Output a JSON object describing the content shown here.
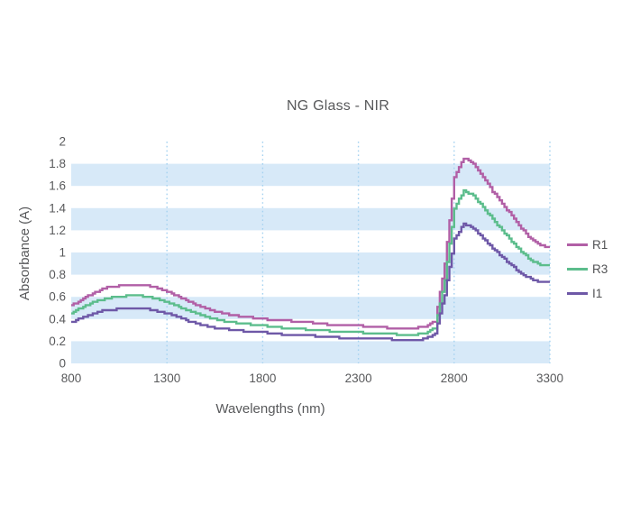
{
  "chart_data": {
    "type": "line",
    "title": "NG Glass - NIR",
    "xlabel": "Wavelengths (nm)",
    "ylabel": "Absorbance (A)",
    "xlim": [
      800,
      3300
    ],
    "ylim": [
      0,
      2
    ],
    "x_ticks": [
      800,
      1300,
      1800,
      2300,
      2800,
      3300
    ],
    "x_tick_labels": [
      "800",
      "1300",
      "1800",
      "2300",
      "2800",
      "3300"
    ],
    "y_ticks": [
      0,
      0.2,
      0.4,
      0.6,
      0.8,
      1,
      1.2,
      1.4,
      1.6,
      1.8,
      2
    ],
    "y_tick_labels": [
      "0",
      "0.2",
      "0.4",
      "0.6",
      "0.8",
      "1",
      "1.2",
      "1.4",
      "1.6",
      "1.8",
      "2"
    ],
    "grid": {
      "vertical_dotted_at": [
        1300,
        1800,
        2300,
        2800,
        3300
      ],
      "horizontal_bands": [
        [
          0,
          0.2
        ],
        [
          0.4,
          0.6
        ],
        [
          0.8,
          1.0
        ],
        [
          1.2,
          1.4
        ],
        [
          1.6,
          1.8
        ]
      ]
    },
    "legend_position": "right-center",
    "x": [
      800,
      850,
      900,
      950,
      1000,
      1050,
      1100,
      1150,
      1200,
      1250,
      1300,
      1350,
      1400,
      1450,
      1500,
      1550,
      1600,
      1650,
      1700,
      1750,
      1800,
      1850,
      1900,
      1950,
      2000,
      2050,
      2100,
      2150,
      2200,
      2250,
      2300,
      2350,
      2400,
      2450,
      2500,
      2550,
      2600,
      2650,
      2700,
      2750,
      2800,
      2850,
      2900,
      2950,
      3000,
      3050,
      3100,
      3150,
      3200,
      3250,
      3300
    ],
    "series": [
      {
        "name": "R1",
        "color": "#b15fa6",
        "values": [
          0.52,
          0.57,
          0.62,
          0.66,
          0.69,
          0.7,
          0.71,
          0.71,
          0.7,
          0.68,
          0.65,
          0.61,
          0.57,
          0.53,
          0.5,
          0.47,
          0.45,
          0.43,
          0.42,
          0.41,
          0.4,
          0.39,
          0.39,
          0.38,
          0.37,
          0.37,
          0.36,
          0.35,
          0.35,
          0.34,
          0.34,
          0.33,
          0.33,
          0.32,
          0.32,
          0.32,
          0.32,
          0.33,
          0.38,
          0.9,
          1.68,
          1.85,
          1.8,
          1.68,
          1.55,
          1.44,
          1.33,
          1.22,
          1.12,
          1.06,
          1.05
        ]
      },
      {
        "name": "R3",
        "color": "#5cbd8c",
        "values": [
          0.45,
          0.5,
          0.54,
          0.57,
          0.59,
          0.6,
          0.61,
          0.61,
          0.6,
          0.58,
          0.55,
          0.52,
          0.48,
          0.45,
          0.42,
          0.4,
          0.38,
          0.37,
          0.36,
          0.35,
          0.34,
          0.33,
          0.32,
          0.31,
          0.31,
          0.3,
          0.3,
          0.29,
          0.29,
          0.28,
          0.28,
          0.27,
          0.27,
          0.27,
          0.26,
          0.26,
          0.26,
          0.27,
          0.32,
          0.75,
          1.4,
          1.56,
          1.51,
          1.41,
          1.3,
          1.2,
          1.1,
          1.01,
          0.93,
          0.89,
          0.88
        ]
      },
      {
        "name": "I1",
        "color": "#6e58a7",
        "values": [
          0.37,
          0.41,
          0.44,
          0.47,
          0.48,
          0.49,
          0.5,
          0.5,
          0.49,
          0.47,
          0.45,
          0.42,
          0.39,
          0.36,
          0.34,
          0.32,
          0.31,
          0.3,
          0.29,
          0.28,
          0.28,
          0.27,
          0.26,
          0.26,
          0.25,
          0.25,
          0.24,
          0.24,
          0.23,
          0.23,
          0.22,
          0.22,
          0.22,
          0.22,
          0.21,
          0.21,
          0.21,
          0.22,
          0.27,
          0.62,
          1.12,
          1.26,
          1.22,
          1.13,
          1.04,
          0.96,
          0.88,
          0.81,
          0.76,
          0.73,
          0.73
        ]
      }
    ],
    "colors": {
      "band": "#d7e9f8",
      "gridline_dots": "#a5d2f0",
      "text": "#58595b"
    }
  }
}
